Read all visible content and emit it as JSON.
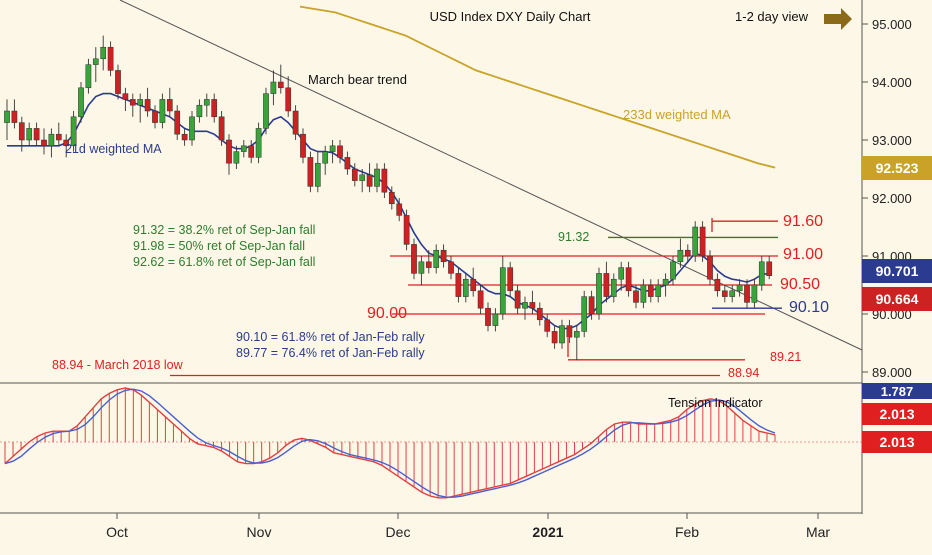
{
  "colors": {
    "background": "#fdf7e8",
    "candle_up": "#3aa33a",
    "candle_down": "#cc2222",
    "ma21": "#2b3b8f",
    "ma233": "#c9a227",
    "resistance": "#e02020",
    "support_green": "#2e7d2e",
    "arrow": "#8b6a1a",
    "tension_bar": "#e04040",
    "tension_line1": "#e04040",
    "tension_line2": "#4a5fcf"
  },
  "chart_data": {
    "type": "candlestick",
    "title": "USD Index DXY Daily Chart",
    "subtitle": "1-2 day view",
    "x_tick_labels": [
      "Oct",
      "Nov",
      "Dec",
      "2021",
      "Feb",
      "Mar"
    ],
    "y_tick_labels": [
      "95.000",
      "94.000",
      "93.000",
      "92.000",
      "91.000",
      "90.000",
      "89.000"
    ],
    "ylim": [
      88.75,
      95.3
    ],
    "price_tags": [
      {
        "id": "ma233",
        "label": "92.523",
        "value": 92.523
      },
      {
        "id": "ma21",
        "label": "90.701",
        "value": 90.701
      },
      {
        "id": "last",
        "label": "90.664",
        "value": 90.664
      }
    ],
    "levels": [
      {
        "id": "r9160",
        "label": "91.60",
        "value": 91.6
      },
      {
        "id": "g9132",
        "label": "91.32",
        "value": 91.32
      },
      {
        "id": "r9100",
        "label": "91.00",
        "value": 91.0
      },
      {
        "id": "r9050",
        "label": "90.50",
        "value": 90.5
      },
      {
        "id": "b9010",
        "label": "90.10",
        "value": 90.1
      },
      {
        "id": "r9000",
        "label": "90.00",
        "value": 90.0
      },
      {
        "id": "r8921",
        "label": "89.21",
        "value": 89.21
      },
      {
        "id": "r8894",
        "label": "88.94",
        "value": 88.94
      }
    ],
    "annotations": {
      "bear_trend": "March bear trend",
      "ma233_label": "233d weighted MA",
      "ma21_label": "21d weighted MA",
      "fib1": "91.32 = 38.2% ret of Sep-Jan fall",
      "fib2": "91.98 = 50% ret of Sep-Jan fall",
      "fib3": "92.62 = 61.8% ret of Sep-Jan fall",
      "rally1": "90.10 = 61.8% ret of Jan-Feb rally",
      "rally2": "89.77 = 76.4% ret of Jan-Feb rally",
      "low_2018": "88.94 - March 2018 low"
    },
    "candles": [
      [
        93.3,
        93.7,
        93.0,
        93.5
      ],
      [
        93.5,
        93.7,
        93.2,
        93.3
      ],
      [
        93.3,
        93.4,
        92.8,
        93.0
      ],
      [
        93.0,
        93.3,
        92.9,
        93.2
      ],
      [
        93.2,
        93.3,
        92.9,
        93.0
      ],
      [
        93.0,
        93.2,
        92.75,
        92.9
      ],
      [
        92.9,
        93.2,
        92.7,
        93.1
      ],
      [
        93.1,
        93.3,
        92.9,
        93.0
      ],
      [
        93.0,
        93.1,
        92.7,
        92.9
      ],
      [
        92.9,
        93.5,
        92.8,
        93.4
      ],
      [
        93.4,
        94.0,
        93.3,
        93.9
      ],
      [
        93.9,
        94.4,
        93.8,
        94.3
      ],
      [
        94.3,
        94.6,
        94.0,
        94.4
      ],
      [
        94.4,
        94.8,
        94.2,
        94.6
      ],
      [
        94.6,
        94.7,
        94.1,
        94.2
      ],
      [
        94.2,
        94.3,
        93.7,
        93.8
      ],
      [
        93.8,
        93.9,
        93.5,
        93.7
      ],
      [
        93.7,
        93.8,
        93.4,
        93.6
      ],
      [
        93.6,
        93.8,
        93.3,
        93.7
      ],
      [
        93.7,
        93.9,
        93.4,
        93.5
      ],
      [
        93.5,
        93.6,
        93.2,
        93.3
      ],
      [
        93.3,
        93.8,
        93.2,
        93.7
      ],
      [
        93.7,
        93.9,
        93.4,
        93.5
      ],
      [
        93.5,
        93.6,
        93.0,
        93.1
      ],
      [
        93.1,
        93.2,
        92.9,
        93.0
      ],
      [
        93.0,
        93.5,
        92.9,
        93.4
      ],
      [
        93.4,
        93.7,
        93.3,
        93.6
      ],
      [
        93.6,
        93.8,
        93.4,
        93.7
      ],
      [
        93.7,
        93.8,
        93.3,
        93.4
      ],
      [
        93.4,
        93.5,
        92.9,
        93.0
      ],
      [
        93.0,
        93.1,
        92.4,
        92.6
      ],
      [
        92.6,
        92.9,
        92.5,
        92.8
      ],
      [
        92.8,
        93.0,
        92.7,
        92.9
      ],
      [
        92.9,
        93.0,
        92.6,
        92.7
      ],
      [
        92.7,
        93.3,
        92.6,
        93.2
      ],
      [
        93.2,
        93.9,
        93.1,
        93.8
      ],
      [
        93.8,
        94.2,
        93.6,
        94.0
      ],
      [
        94.0,
        94.3,
        93.8,
        93.9
      ],
      [
        93.9,
        94.1,
        93.4,
        93.5
      ],
      [
        93.5,
        93.6,
        93.0,
        93.1
      ],
      [
        93.1,
        93.2,
        92.6,
        92.7
      ],
      [
        92.7,
        92.8,
        92.1,
        92.2
      ],
      [
        92.2,
        92.8,
        92.1,
        92.6
      ],
      [
        92.6,
        92.9,
        92.4,
        92.8
      ],
      [
        92.8,
        93.0,
        92.6,
        92.9
      ],
      [
        92.9,
        93.0,
        92.6,
        92.7
      ],
      [
        92.7,
        92.8,
        92.4,
        92.5
      ],
      [
        92.5,
        92.6,
        92.2,
        92.3
      ],
      [
        92.3,
        92.5,
        92.1,
        92.4
      ],
      [
        92.4,
        92.6,
        92.1,
        92.2
      ],
      [
        92.2,
        92.6,
        92.1,
        92.5
      ],
      [
        92.5,
        92.6,
        92.0,
        92.1
      ],
      [
        92.1,
        92.2,
        91.8,
        91.9
      ],
      [
        91.9,
        92.0,
        91.6,
        91.7
      ],
      [
        91.7,
        91.8,
        91.1,
        91.2
      ],
      [
        91.2,
        91.3,
        90.6,
        90.7
      ],
      [
        90.7,
        91.0,
        90.5,
        90.9
      ],
      [
        90.9,
        91.1,
        90.7,
        90.8
      ],
      [
        90.8,
        91.2,
        90.7,
        91.1
      ],
      [
        91.1,
        91.2,
        90.8,
        90.9
      ],
      [
        90.9,
        91.0,
        90.6,
        90.7
      ],
      [
        90.7,
        90.8,
        90.2,
        90.3
      ],
      [
        90.3,
        90.7,
        90.2,
        90.6
      ],
      [
        90.6,
        90.8,
        90.3,
        90.4
      ],
      [
        90.4,
        90.5,
        90.0,
        90.1
      ],
      [
        90.1,
        90.2,
        89.7,
        89.8
      ],
      [
        89.8,
        90.1,
        89.7,
        90.0
      ],
      [
        90.0,
        91.0,
        89.9,
        90.8
      ],
      [
        90.8,
        90.9,
        90.3,
        90.4
      ],
      [
        90.4,
        90.5,
        90.0,
        90.1
      ],
      [
        90.1,
        90.3,
        89.9,
        90.2
      ],
      [
        90.2,
        90.4,
        90.0,
        90.1
      ],
      [
        90.1,
        90.2,
        89.8,
        89.9
      ],
      [
        89.9,
        90.0,
        89.6,
        89.7
      ],
      [
        89.7,
        89.8,
        89.4,
        89.5
      ],
      [
        89.5,
        89.9,
        89.4,
        89.8
      ],
      [
        89.8,
        89.9,
        89.5,
        89.6
      ],
      [
        89.6,
        89.8,
        89.2,
        89.7
      ],
      [
        89.7,
        90.4,
        89.6,
        90.3
      ],
      [
        90.3,
        90.4,
        89.9,
        90.0
      ],
      [
        90.0,
        90.8,
        89.9,
        90.7
      ],
      [
        90.7,
        90.9,
        90.2,
        90.3
      ],
      [
        90.3,
        90.7,
        90.2,
        90.6
      ],
      [
        90.6,
        90.9,
        90.4,
        90.8
      ],
      [
        90.8,
        90.9,
        90.3,
        90.4
      ],
      [
        90.4,
        90.5,
        90.1,
        90.2
      ],
      [
        90.2,
        90.6,
        90.1,
        90.5
      ],
      [
        90.5,
        90.6,
        90.2,
        90.3
      ],
      [
        90.3,
        90.6,
        90.2,
        90.5
      ],
      [
        90.5,
        90.7,
        90.3,
        90.6
      ],
      [
        90.6,
        91.0,
        90.5,
        90.9
      ],
      [
        90.9,
        91.3,
        90.8,
        91.1
      ],
      [
        91.1,
        91.2,
        90.9,
        91.0
      ],
      [
        91.0,
        91.6,
        90.9,
        91.5
      ],
      [
        91.5,
        91.6,
        90.9,
        91.0
      ],
      [
        91.0,
        91.1,
        90.5,
        90.6
      ],
      [
        90.6,
        90.7,
        90.3,
        90.4
      ],
      [
        90.4,
        90.5,
        90.2,
        90.3
      ],
      [
        90.3,
        90.5,
        90.2,
        90.4
      ],
      [
        90.4,
        90.6,
        90.3,
        90.5
      ],
      [
        90.5,
        90.6,
        90.1,
        90.2
      ],
      [
        90.2,
        90.6,
        90.1,
        90.5
      ],
      [
        90.5,
        91.0,
        90.4,
        90.9
      ],
      [
        90.9,
        91.0,
        90.6,
        90.66
      ]
    ],
    "ma21": [
      92.9,
      92.9,
      92.9,
      92.9,
      92.9,
      92.9,
      92.9,
      92.9,
      92.95,
      93.1,
      93.35,
      93.6,
      93.75,
      93.8,
      93.8,
      93.75,
      93.7,
      93.65,
      93.6,
      93.55,
      93.5,
      93.45,
      93.4,
      93.3,
      93.2,
      93.15,
      93.15,
      93.15,
      93.1,
      93.0,
      92.9,
      92.85,
      92.85,
      92.9,
      93.0,
      93.2,
      93.35,
      93.4,
      93.3,
      93.15,
      93.0,
      92.85,
      92.8,
      92.8,
      92.78,
      92.7,
      92.6,
      92.5,
      92.45,
      92.4,
      92.35,
      92.25,
      92.1,
      91.9,
      91.65,
      91.4,
      91.2,
      91.05,
      91.0,
      90.95,
      90.9,
      90.8,
      90.7,
      90.6,
      90.5,
      90.4,
      90.35,
      90.35,
      90.3,
      90.2,
      90.15,
      90.1,
      90.0,
      89.9,
      89.8,
      89.75,
      89.75,
      89.8,
      89.9,
      90.0,
      90.15,
      90.25,
      90.35,
      90.45,
      90.5,
      90.45,
      90.4,
      90.4,
      90.45,
      90.5,
      90.6,
      90.75,
      90.9,
      91.05,
      91.0,
      90.9,
      90.75,
      90.65,
      90.6,
      90.58,
      90.55,
      90.6,
      90.68,
      90.701
    ],
    "ma233": [
      95.3,
      95.25,
      95.2,
      95.1,
      95.0,
      94.9,
      94.8,
      94.65,
      94.5,
      94.35,
      94.2,
      94.1,
      94.0,
      93.9,
      93.8,
      93.7,
      93.6,
      93.5,
      93.4,
      93.3,
      93.2,
      93.1,
      93.0,
      92.9,
      92.8,
      92.7,
      92.6,
      92.523
    ],
    "tension": {
      "values": [
        -0.6,
        -0.4,
        -0.2,
        0.0,
        0.15,
        0.25,
        0.3,
        0.3,
        0.3,
        0.45,
        0.7,
        0.95,
        1.2,
        1.35,
        1.45,
        1.5,
        1.45,
        1.3,
        1.1,
        0.9,
        0.7,
        0.5,
        0.3,
        0.1,
        -0.05,
        -0.1,
        -0.15,
        -0.25,
        -0.4,
        -0.55,
        -0.6,
        -0.6,
        -0.55,
        -0.45,
        -0.3,
        -0.1,
        0.05,
        0.1,
        0.05,
        -0.05,
        -0.15,
        -0.3,
        -0.35,
        -0.4,
        -0.45,
        -0.5,
        -0.55,
        -0.65,
        -0.8,
        -0.95,
        -1.1,
        -1.25,
        -1.4,
        -1.5,
        -1.55,
        -1.55,
        -1.5,
        -1.45,
        -1.4,
        -1.35,
        -1.3,
        -1.25,
        -1.2,
        -1.15,
        -1.05,
        -0.95,
        -0.85,
        -0.75,
        -0.65,
        -0.55,
        -0.45,
        -0.35,
        -0.2,
        -0.05,
        0.15,
        0.35,
        0.5,
        0.55,
        0.55,
        0.5,
        0.5,
        0.5,
        0.55,
        0.6,
        0.7,
        0.9,
        1.05,
        1.15,
        1.2,
        1.15,
        1.0,
        0.8,
        0.6,
        0.45,
        0.3,
        0.25,
        0.2
      ],
      "label": "Tension Indicator",
      "tags": [
        {
          "id": "t1",
          "label": "2.013"
        },
        {
          "id": "t2",
          "label": "2.013"
        }
      ],
      "cut_tag": "1.787"
    }
  }
}
